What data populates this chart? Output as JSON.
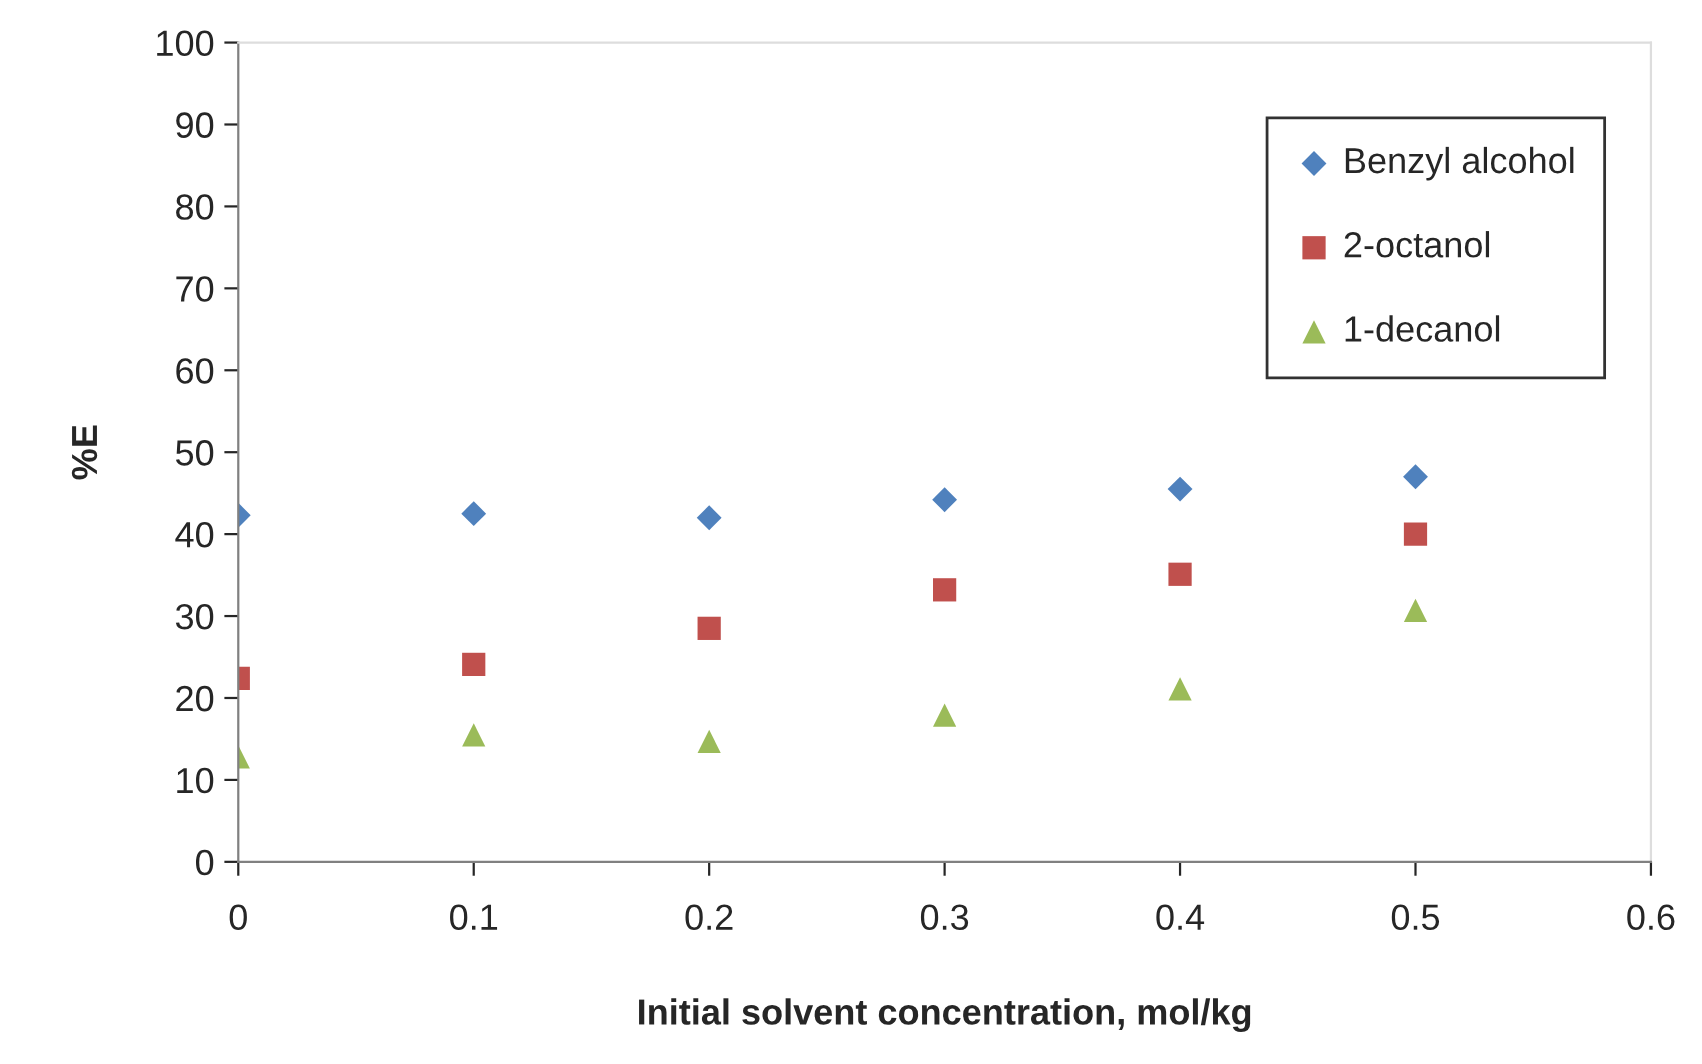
{
  "chart_data": {
    "type": "scatter",
    "xlabel": "Initial solvent concentration, mol/kg",
    "ylabel": "%E",
    "x": [
      0,
      0.1,
      0.2,
      0.3,
      0.4,
      0.5
    ],
    "series": [
      {
        "name": "Benzyl alcohol",
        "color": "#4f81bd",
        "marker": "diamond",
        "values": [
          42.3,
          42.5,
          42,
          44.2,
          45.5,
          47
        ]
      },
      {
        "name": "2-octanol",
        "color": "#c0504d",
        "marker": "square",
        "values": [
          22.4,
          24.1,
          28.5,
          33.2,
          35.1,
          40
        ]
      },
      {
        "name": "1-decanol",
        "color": "#9bbb59",
        "marker": "triangle",
        "values": [
          12.8,
          15.5,
          14.7,
          17.9,
          21.1,
          30.7
        ]
      }
    ],
    "xlim": [
      0,
      0.6
    ],
    "xticks": [
      0,
      0.1,
      0.2,
      0.3,
      0.4,
      0.5,
      0.6
    ],
    "ylim": [
      0,
      100
    ],
    "yticks": [
      0,
      10,
      20,
      30,
      40,
      50,
      60,
      70,
      80,
      90,
      100
    ],
    "grid": false,
    "legend": "top right"
  }
}
